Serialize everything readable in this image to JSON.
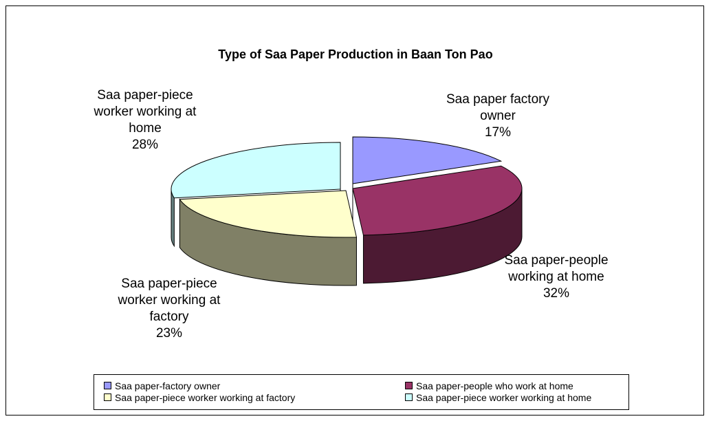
{
  "chart_data": {
    "type": "pie",
    "title": "Type of Saa Paper Production in Baan Ton Pao",
    "slices": [
      {
        "name": "Saa paper-factory owner",
        "value": 17,
        "label_lines": [
          "Saa paper factory",
          "owner",
          "17%"
        ],
        "color": "#9999ff",
        "side_color": "#4c4c80"
      },
      {
        "name": "Saa paper-people who work at home",
        "value": 32,
        "label_lines": [
          "Saa paper-people",
          "working at home",
          "32%"
        ],
        "color": "#993366",
        "side_color": "#4c1a33"
      },
      {
        "name": "Saa paper-piece worker working at factory",
        "value": 23,
        "label_lines": [
          "Saa paper-piece",
          "worker working at",
          "factory",
          "23%"
        ],
        "color": "#ffffcc",
        "side_color": "#808066"
      },
      {
        "name": "Saa paper-piece worker working at home",
        "value": 28,
        "label_lines": [
          "Saa paper-piece",
          "worker working at",
          "home",
          "28%"
        ],
        "color": "#ccffff",
        "side_color": "#668080"
      }
    ],
    "legend_position": "bottom"
  }
}
